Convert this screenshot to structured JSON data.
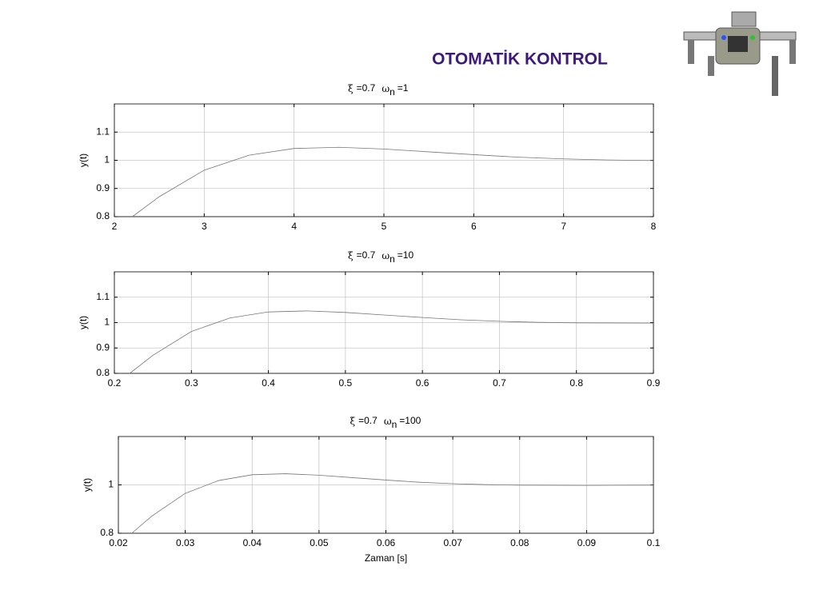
{
  "title": "OTOMATİK KONTROL",
  "chart_data": [
    {
      "type": "line",
      "title": [
        "ξ",
        "=0.7",
        "ω",
        "n",
        "=1"
      ],
      "ylabel": "y(t)",
      "x": [
        2.2,
        2.5,
        3,
        3.5,
        4,
        4.5,
        5,
        5.5,
        6,
        6.5,
        7,
        7.5,
        8
      ],
      "series": [
        {
          "name": "y(t)",
          "color": "#777777",
          "values": [
            0.8,
            0.871,
            0.965,
            1.018,
            1.042,
            1.046,
            1.04,
            1.03,
            1.02,
            1.011,
            1.005,
            1.001,
            0.999
          ]
        }
      ],
      "xlim": [
        2,
        8
      ],
      "ylim": [
        0.8,
        1.2
      ],
      "xticks": [
        2,
        3,
        4,
        5,
        6,
        7,
        8
      ],
      "yticks": [
        0.8,
        0.9,
        1,
        1.1
      ],
      "grid": true
    },
    {
      "type": "line",
      "title": [
        "ξ",
        "=0.7",
        "ω",
        "n",
        "=10"
      ],
      "ylabel": "y(t)",
      "x": [
        0.22,
        0.25,
        0.3,
        0.35,
        0.4,
        0.45,
        0.5,
        0.55,
        0.6,
        0.65,
        0.7,
        0.75,
        0.8,
        0.9
      ],
      "series": [
        {
          "name": "y(t)",
          "color": "#777777",
          "values": [
            0.8,
            0.871,
            0.965,
            1.018,
            1.042,
            1.046,
            1.04,
            1.03,
            1.02,
            1.011,
            1.005,
            1.001,
            0.999,
            0.998
          ]
        }
      ],
      "xlim": [
        0.2,
        0.9
      ],
      "ylim": [
        0.8,
        1.2
      ],
      "xticks": [
        0.2,
        0.3,
        0.4,
        0.5,
        0.6,
        0.7,
        0.8,
        0.9
      ],
      "yticks": [
        0.8,
        0.9,
        1,
        1.1
      ],
      "grid": true
    },
    {
      "type": "line",
      "title": [
        "ξ",
        "=0.7",
        "ω",
        "n",
        "=100"
      ],
      "ylabel": "y(t)",
      "xlabel": "Zaman [s]",
      "x": [
        0.022,
        0.025,
        0.03,
        0.035,
        0.04,
        0.045,
        0.05,
        0.055,
        0.06,
        0.065,
        0.07,
        0.075,
        0.08,
        0.09,
        0.1
      ],
      "series": [
        {
          "name": "y(t)",
          "color": "#777777",
          "values": [
            0.8,
            0.871,
            0.965,
            1.018,
            1.042,
            1.046,
            1.04,
            1.03,
            1.02,
            1.011,
            1.005,
            1.001,
            0.999,
            0.998,
            0.999
          ]
        }
      ],
      "xlim": [
        0.02,
        0.1
      ],
      "ylim": [
        0.8,
        1.2
      ],
      "xticks": [
        0.02,
        0.03,
        0.04,
        0.05,
        0.06,
        0.07,
        0.08,
        0.09,
        0.1
      ],
      "yticks": [
        0.8,
        1
      ],
      "grid": true
    }
  ]
}
